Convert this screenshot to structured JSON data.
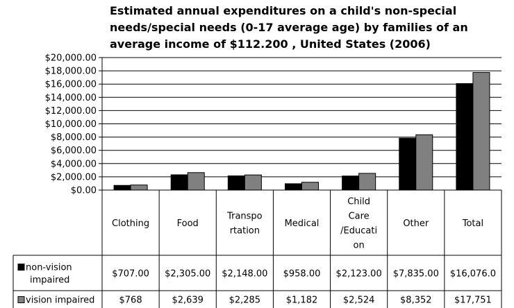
{
  "chart_data": {
    "type": "bar",
    "title": "Estimated annual expenditures on a child's non-special needs/special needs (0-17 average age) by families of an average income of $112.200 , United States (2006)",
    "categories": [
      [
        "Clothing"
      ],
      [
        "Food"
      ],
      [
        "Transpo",
        "rtation"
      ],
      [
        "Medical"
      ],
      [
        "Child",
        "Care",
        "/Educati",
        "on"
      ],
      [
        "Other"
      ],
      [
        "Total"
      ]
    ],
    "series": [
      {
        "name_lines": [
          "non-vision",
          "impaired"
        ],
        "color": "#000000",
        "values": [
          707,
          2305,
          2148,
          958,
          2123,
          7835,
          16076
        ],
        "labels": [
          "$707.00",
          "$2,305.00",
          "$2,148.00",
          "$958.00",
          "$2,123.00",
          "$7,835.00",
          "$16,076.0"
        ]
      },
      {
        "name": "vision impaired",
        "color": "#808080",
        "values": [
          768,
          2639,
          2285,
          1182,
          2524,
          8352,
          17751
        ],
        "labels": [
          "$768",
          "$2,639",
          "$2,285",
          "$1,182",
          "$2,524",
          "$8,352",
          "$17,751"
        ]
      }
    ],
    "ylim": [
      0,
      20000
    ],
    "yticks": [
      "$0.00",
      "$2,000.00",
      "$4,000.00",
      "$6,000.00",
      "$8,000.00",
      "$10,000.00",
      "$12,000.00",
      "$14,000.00",
      "$16,000.00",
      "$18,000.00",
      "$20,000.00"
    ],
    "ytick_step": 2000,
    "grid": true,
    "legend": "data-table"
  }
}
